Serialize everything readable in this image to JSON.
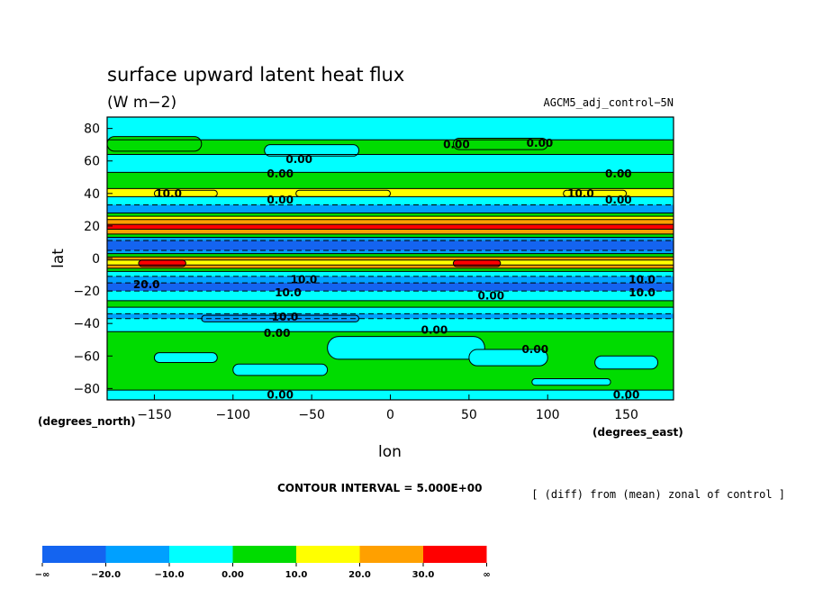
{
  "chart_data": {
    "type": "heatmap",
    "title": "surface upward latent heat flux",
    "units": "(W m−2)",
    "experiment": "AGCM5_adj_control−5N",
    "xlabel": "lon",
    "ylabel": "lat",
    "xunit": "(degrees_east)",
    "yunit": "(degrees_north)",
    "xlim": [
      -180,
      180
    ],
    "ylim": [
      -87,
      87
    ],
    "xticks": [
      -150,
      -100,
      -50,
      0,
      50,
      100,
      150
    ],
    "xtick_labels": [
      "−150",
      "−100",
      "−50",
      "0",
      "50",
      "100",
      "150"
    ],
    "yticks": [
      80,
      60,
      40,
      20,
      0,
      -20,
      -40,
      -60,
      -80
    ],
    "ytick_labels": [
      "80",
      "60",
      "40",
      "20",
      "0",
      "−20",
      "−40",
      "−60",
      "−80"
    ],
    "contour_interval": "CONTOUR INTERVAL = 5.000E+00",
    "description": "[ (diff) from (mean) zonal of control ]",
    "legend": {
      "levels": [
        "−∞",
        "−20.0",
        "−10.0",
        "0.00",
        "10.0",
        "20.0",
        "30.0",
        "∞"
      ],
      "colors": [
        "#1464f0",
        "#00a0ff",
        "#00ffff",
        "#00dc00",
        "#ffff00",
        "#ffa000",
        "#ff0000"
      ]
    },
    "bands": [
      {
        "lat_from": 87,
        "lat_to": 73,
        "value": -5
      },
      {
        "lat_from": 73,
        "lat_to": 64,
        "value": 5
      },
      {
        "lat_from": 64,
        "lat_to": 53,
        "value": -5
      },
      {
        "lat_from": 53,
        "lat_to": 43,
        "value": 5
      },
      {
        "lat_from": 43,
        "lat_to": 38,
        "value": 15
      },
      {
        "lat_from": 38,
        "lat_to": 33,
        "value": -5
      },
      {
        "lat_from": 33,
        "lat_to": 28,
        "value": -15
      },
      {
        "lat_from": 28,
        "lat_to": 26,
        "value": 5
      },
      {
        "lat_from": 26,
        "lat_to": 24,
        "value": 15
      },
      {
        "lat_from": 24,
        "lat_to": 21,
        "value": 25
      },
      {
        "lat_from": 21,
        "lat_to": 18,
        "value": 35
      },
      {
        "lat_from": 18,
        "lat_to": 15,
        "value": 25
      },
      {
        "lat_from": 15,
        "lat_to": 13,
        "value": 5
      },
      {
        "lat_from": 13,
        "lat_to": 11,
        "value": -15
      },
      {
        "lat_from": 11,
        "lat_to": 5,
        "value": -25
      },
      {
        "lat_from": 5,
        "lat_to": 3,
        "value": -15
      },
      {
        "lat_from": 3,
        "lat_to": 1,
        "value": 5
      },
      {
        "lat_from": 1,
        "lat_to": -1,
        "value": 25
      },
      {
        "lat_from": -1,
        "lat_to": -4,
        "value": 15
      },
      {
        "lat_from": -4,
        "lat_to": -6,
        "value": 25
      },
      {
        "lat_from": -6,
        "lat_to": -8,
        "value": 5
      },
      {
        "lat_from": -8,
        "lat_to": -11,
        "value": -5
      },
      {
        "lat_from": -11,
        "lat_to": -15,
        "value": -15
      },
      {
        "lat_from": -15,
        "lat_to": -20,
        "value": -25
      },
      {
        "lat_from": -20,
        "lat_to": -26,
        "value": -5
      },
      {
        "lat_from": -26,
        "lat_to": -30,
        "value": 5
      },
      {
        "lat_from": -30,
        "lat_to": -34,
        "value": -5
      },
      {
        "lat_from": -34,
        "lat_to": -37,
        "value": -15
      },
      {
        "lat_from": -37,
        "lat_to": -45,
        "value": -5
      },
      {
        "lat_from": -45,
        "lat_to": -81,
        "value": 5
      },
      {
        "lat_from": -81,
        "lat_to": -87,
        "value": -5
      }
    ],
    "patches": [
      {
        "lon": [
          -180,
          -120
        ],
        "lat": [
          75,
          66
        ],
        "value": 5
      },
      {
        "lon": [
          -80,
          -20
        ],
        "lat": [
          70,
          63
        ],
        "value": -5
      },
      {
        "lon": [
          40,
          100
        ],
        "lat": [
          74,
          67
        ],
        "value": 5
      },
      {
        "lon": [
          -60,
          0
        ],
        "lat": [
          42,
          38
        ],
        "value": 15
      },
      {
        "lon": [
          -150,
          -110
        ],
        "lat": [
          42,
          38
        ],
        "value": 15
      },
      {
        "lon": [
          110,
          150
        ],
        "lat": [
          42,
          38
        ],
        "value": 15
      },
      {
        "lon": [
          40,
          70
        ],
        "lat": [
          -1,
          -5
        ],
        "value": 35
      },
      {
        "lon": [
          -160,
          -130
        ],
        "lat": [
          -1,
          -5
        ],
        "value": 35
      },
      {
        "lon": [
          -120,
          -20
        ],
        "lat": [
          -35,
          -39
        ],
        "value": -15
      },
      {
        "lon": [
          -40,
          60
        ],
        "lat": [
          -48,
          -62
        ],
        "value": -5
      },
      {
        "lon": [
          -150,
          -110
        ],
        "lat": [
          -58,
          -64
        ],
        "value": -5
      },
      {
        "lon": [
          50,
          100
        ],
        "lat": [
          -56,
          -66
        ],
        "value": -5
      },
      {
        "lon": [
          130,
          170
        ],
        "lat": [
          -60,
          -68
        ],
        "value": -5
      },
      {
        "lon": [
          -100,
          -40
        ],
        "lat": [
          -65,
          -72
        ],
        "value": -5
      },
      {
        "lon": [
          90,
          140
        ],
        "lat": [
          -74,
          -78
        ],
        "value": -5
      }
    ],
    "contour_labels": [
      {
        "text": "0.00",
        "lon": 42,
        "lat": 70
      },
      {
        "text": "0.00",
        "lon": 95,
        "lat": 71
      },
      {
        "text": "0.00",
        "lon": -58,
        "lat": 61
      },
      {
        "text": "0.00",
        "lon": -70,
        "lat": 52
      },
      {
        "text": "0.00",
        "lon": 145,
        "lat": 52
      },
      {
        "text": "10.0",
        "lon": -141,
        "lat": 40
      },
      {
        "text": "10.0",
        "lon": 121,
        "lat": 40
      },
      {
        "text": "0.00",
        "lon": -70,
        "lat": 36
      },
      {
        "text": "0.00",
        "lon": 145,
        "lat": 36
      },
      {
        "text": "20.0",
        "lon": -155,
        "lat": -16
      },
      {
        "text": "10.0",
        "lon": -55,
        "lat": -13
      },
      {
        "text": "10.0",
        "lon": -65,
        "lat": -21
      },
      {
        "text": "10.0",
        "lon": 160,
        "lat": -13
      },
      {
        "text": "10.0",
        "lon": 160,
        "lat": -21
      },
      {
        "text": "0.00",
        "lon": 64,
        "lat": -23
      },
      {
        "text": "10.0",
        "lon": -67,
        "lat": -36
      },
      {
        "text": "0.00",
        "lon": -72,
        "lat": -46
      },
      {
        "text": "0.00",
        "lon": 28,
        "lat": -44
      },
      {
        "text": "0.00",
        "lon": 92,
        "lat": -56
      },
      {
        "text": "0.00",
        "lon": -70,
        "lat": -84
      },
      {
        "text": "0.00",
        "lon": 150,
        "lat": -84
      }
    ]
  }
}
